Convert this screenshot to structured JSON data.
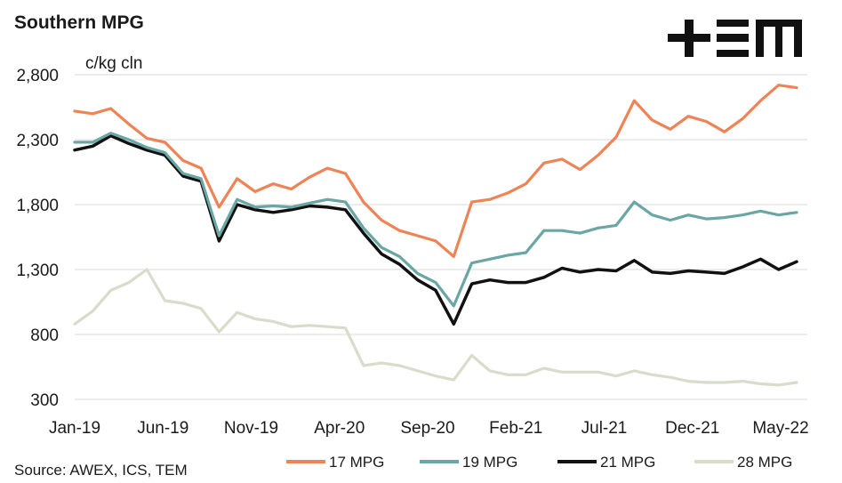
{
  "chart_data": {
    "type": "line",
    "title": "Southern MPG",
    "ylabel": "c/kg cln",
    "xlabel": "",
    "source": "Source: AWEX, ICS, TEM",
    "logo": "TEM",
    "ylim": [
      300,
      2800
    ],
    "yticks": [
      "2,800",
      "2,300",
      "1,800",
      "1,300",
      "800",
      "300"
    ],
    "ytick_values": [
      2800,
      2300,
      1800,
      1300,
      800,
      300
    ],
    "xticks": [
      "Jan-19",
      "Jun-19",
      "Nov-19",
      "Apr-20",
      "Sep-20",
      "Feb-21",
      "Jul-21",
      "Dec-21",
      "May-22"
    ],
    "grid": true,
    "legend_position": "bottom",
    "x": [
      "2019-01",
      "2019-02",
      "2019-03",
      "2019-04",
      "2019-05",
      "2019-06",
      "2019-07",
      "2019-08",
      "2019-09",
      "2019-10",
      "2019-11",
      "2019-12",
      "2020-01",
      "2020-02",
      "2020-03",
      "2020-04",
      "2020-05",
      "2020-06",
      "2020-07",
      "2020-08",
      "2020-09",
      "2020-10",
      "2020-11",
      "2020-12",
      "2021-01",
      "2021-02",
      "2021-03",
      "2021-04",
      "2021-05",
      "2021-06",
      "2021-07",
      "2021-08",
      "2021-09",
      "2021-10",
      "2021-11",
      "2021-12",
      "2022-01",
      "2022-02",
      "2022-03",
      "2022-04",
      "2022-05"
    ],
    "series": [
      {
        "name": "17 MPG",
        "color": "#ee8455",
        "values": [
          2520,
          2500,
          2540,
          2420,
          2310,
          2280,
          2140,
          2080,
          1780,
          2000,
          1900,
          1960,
          1920,
          2010,
          2080,
          2040,
          1820,
          1680,
          1600,
          1560,
          1520,
          1400,
          1820,
          1840,
          1890,
          1960,
          2120,
          2150,
          2070,
          2180,
          2320,
          2600,
          2450,
          2380,
          2480,
          2440,
          2360,
          2460,
          2600,
          2720,
          2700
        ]
      },
      {
        "name": "19 MPG",
        "color": "#6aa6a4",
        "values": [
          2280,
          2280,
          2350,
          2300,
          2240,
          2200,
          2040,
          2000,
          1560,
          1840,
          1780,
          1790,
          1780,
          1810,
          1840,
          1820,
          1620,
          1470,
          1400,
          1270,
          1200,
          1020,
          1350,
          1380,
          1410,
          1430,
          1600,
          1600,
          1580,
          1620,
          1640,
          1820,
          1720,
          1680,
          1720,
          1690,
          1700,
          1720,
          1750,
          1720,
          1740
        ]
      },
      {
        "name": "21 MPG",
        "color": "#111111",
        "values": [
          2220,
          2250,
          2330,
          2270,
          2220,
          2180,
          2020,
          1980,
          1520,
          1800,
          1760,
          1740,
          1760,
          1790,
          1780,
          1760,
          1580,
          1420,
          1340,
          1220,
          1140,
          880,
          1190,
          1220,
          1200,
          1200,
          1240,
          1310,
          1280,
          1300,
          1290,
          1370,
          1280,
          1270,
          1290,
          1280,
          1270,
          1320,
          1380,
          1300,
          1360
        ]
      },
      {
        "name": "28 MPG",
        "color": "#d8dccb",
        "values": [
          880,
          980,
          1140,
          1200,
          1300,
          1060,
          1040,
          1000,
          820,
          970,
          920,
          900,
          860,
          870,
          860,
          850,
          560,
          580,
          560,
          520,
          480,
          450,
          640,
          520,
          490,
          490,
          540,
          510,
          510,
          510,
          480,
          520,
          490,
          470,
          440,
          430,
          430,
          440,
          420,
          410,
          430
        ]
      }
    ]
  }
}
